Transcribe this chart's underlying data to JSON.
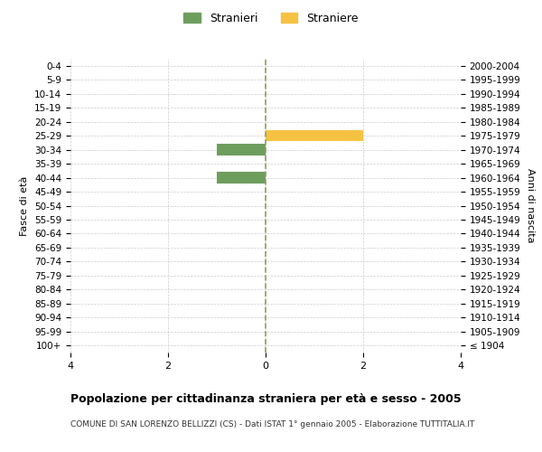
{
  "age_groups": [
    "100+",
    "95-99",
    "90-94",
    "85-89",
    "80-84",
    "75-79",
    "70-74",
    "65-69",
    "60-64",
    "55-59",
    "50-54",
    "45-49",
    "40-44",
    "35-39",
    "30-34",
    "25-29",
    "20-24",
    "15-19",
    "10-14",
    "5-9",
    "0-4"
  ],
  "birth_years": [
    "≤ 1904",
    "1905-1909",
    "1910-1914",
    "1915-1919",
    "1920-1924",
    "1925-1929",
    "1930-1934",
    "1935-1939",
    "1940-1944",
    "1945-1949",
    "1950-1954",
    "1955-1959",
    "1960-1964",
    "1965-1969",
    "1970-1974",
    "1975-1979",
    "1980-1984",
    "1985-1989",
    "1990-1994",
    "1995-1999",
    "2000-2004"
  ],
  "males": [
    0,
    0,
    0,
    0,
    0,
    0,
    0,
    0,
    0,
    0,
    0,
    0,
    1,
    0,
    1,
    0,
    0,
    0,
    0,
    0,
    0
  ],
  "females": [
    0,
    0,
    0,
    0,
    0,
    0,
    0,
    0,
    0,
    0,
    0,
    0,
    0,
    0,
    0,
    2,
    0,
    0,
    0,
    0,
    0
  ],
  "male_color": "#6e9e5e",
  "female_color": "#f5c242",
  "xlim": 4,
  "ylabel_left": "Fasce di età",
  "ylabel_right": "Anni di nascita",
  "legend_male": "Stranieri",
  "legend_female": "Straniere",
  "title": "Popolazione per cittadinanza straniera per età e sesso - 2005",
  "subtitle": "COMUNE DI SAN LORENZO BELLIZZI (CS) - Dati ISTAT 1° gennaio 2005 - Elaborazione TUTTITALIA.IT",
  "xticks": [
    -4,
    -2,
    0,
    2,
    4
  ],
  "xticklabels": [
    "4",
    "2",
    "0",
    "2",
    "4"
  ],
  "center_line_color": "#999966",
  "background_color": "#ffffff",
  "grid_color": "#cccccc",
  "bar_height": 0.8
}
